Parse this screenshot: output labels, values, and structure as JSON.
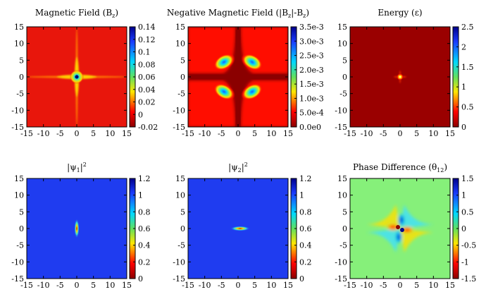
{
  "chart_data": [
    {
      "type": "heatmap",
      "title": "Magnetic Field (B_z)",
      "title_main": "Magnetic Field (B",
      "title_sub": "z",
      "title_tail": ")",
      "xlim": [
        -15,
        15
      ],
      "ylim": [
        -15,
        15
      ],
      "x_ticks": [
        "-15",
        "-10",
        "-5",
        "0",
        "5",
        "10",
        "15"
      ],
      "y_ticks": [
        "15",
        "10",
        "5",
        "0",
        "-5",
        "-10",
        "-15"
      ],
      "colorbar": {
        "min": -0.02,
        "max": 0.14,
        "ticks": [
          "0.14",
          "0.12",
          "0.1",
          "0.08",
          "0.06",
          "0.04",
          "0.02",
          "0",
          "-0.02"
        ]
      },
      "background_color": "#e8160c",
      "feature": "cross-shaped peak at origin, max 0.14 at (0,0)"
    },
    {
      "type": "heatmap",
      "title": "Negative Magnetic Field (|B_z|-B_z)",
      "title_main": "Negative Magnetic Field (|B",
      "title_sub": "z",
      "title_tail": "|-B",
      "title_sub2": "z",
      "title_tail2": ")",
      "xlim": [
        -15,
        15
      ],
      "ylim": [
        -15,
        15
      ],
      "x_ticks": [
        "-15",
        "-10",
        "-5",
        "0",
        "5",
        "10",
        "15"
      ],
      "y_ticks": [
        "15",
        "10",
        "5",
        "0",
        "-5",
        "-10",
        "-15"
      ],
      "colorbar": {
        "min": 0.0,
        "max": 0.0035,
        "ticks": [
          "3.5e-3",
          "3.0e-3",
          "2.5e-3",
          "2.0e-3",
          "1.5e-3",
          "1.0e-3",
          "5.0e-4",
          "0.0e0"
        ]
      },
      "background_color": "#8b0000",
      "feature": "four lobes along diagonals near (±5, ±3)"
    },
    {
      "type": "heatmap",
      "title": "Energy (ε)",
      "title_main": "Energy (ε)",
      "xlim": [
        -15,
        15
      ],
      "ylim": [
        -15,
        15
      ],
      "x_ticks": [
        "-15",
        "-10",
        "-5",
        "0",
        "5",
        "10",
        "15"
      ],
      "y_ticks": [
        "15",
        "10",
        "5",
        "0",
        "-5",
        "-10",
        "-15"
      ],
      "colorbar": {
        "min": 0,
        "max": 2.5,
        "ticks": [
          "2.5",
          "2",
          "1.5",
          "1",
          "0.5",
          "0"
        ]
      },
      "background_color": "#9a0000",
      "feature": "small bright spot at origin"
    },
    {
      "type": "heatmap",
      "title": "|ψ_1|^2",
      "title_main": "|ψ",
      "title_sub": "1",
      "title_tail": "|",
      "title_sup": "2",
      "xlim": [
        -15,
        15
      ],
      "ylim": [
        -15,
        15
      ],
      "x_ticks": [
        "-15",
        "-10",
        "-5",
        "0",
        "5",
        "10",
        "15"
      ],
      "y_ticks": [
        "15",
        "10",
        "5",
        "0",
        "-5",
        "-10",
        "-15"
      ],
      "colorbar": {
        "min": 0,
        "max": 1.2,
        "ticks": [
          "1.2",
          "1",
          "0.8",
          "0.6",
          "0.4",
          "0.2",
          "0"
        ]
      },
      "background_color": "#1f3cf0",
      "feature": "vertical elongated dip at origin"
    },
    {
      "type": "heatmap",
      "title": "|ψ_2|^2",
      "title_main": "|ψ",
      "title_sub": "2",
      "title_tail": "|",
      "title_sup": "2",
      "xlim": [
        -15,
        15
      ],
      "ylim": [
        -15,
        15
      ],
      "x_ticks": [
        "-15",
        "-10",
        "-5",
        "0",
        "5",
        "10",
        "15"
      ],
      "y_ticks": [
        "15",
        "10",
        "5",
        "0",
        "-5",
        "-10",
        "-15"
      ],
      "colorbar": {
        "min": 0,
        "max": 1.2,
        "ticks": [
          "1.2",
          "1",
          "0.8",
          "0.6",
          "0.4",
          "0.2",
          "0"
        ]
      },
      "background_color": "#1f3cf0",
      "feature": "horizontal elongated dip at origin"
    },
    {
      "type": "heatmap",
      "title": "Phase Difference (θ_12)",
      "title_main": "Phase Difference (θ",
      "title_sub": "12",
      "title_tail": ")",
      "xlim": [
        -15,
        15
      ],
      "ylim": [
        -15,
        15
      ],
      "x_ticks": [
        "-15",
        "-10",
        "-5",
        "0",
        "5",
        "10",
        "15"
      ],
      "y_ticks": [
        "15",
        "10",
        "5",
        "0",
        "-5",
        "-10",
        "-15"
      ],
      "colorbar": {
        "min": -1.5,
        "max": 1.5,
        "ticks": [
          "1.5",
          "1",
          "0.5",
          "0",
          "-0.5",
          "-1",
          "-1.5"
        ]
      },
      "background_color": "#86f07a",
      "feature": "quadrupole pattern at origin"
    }
  ]
}
